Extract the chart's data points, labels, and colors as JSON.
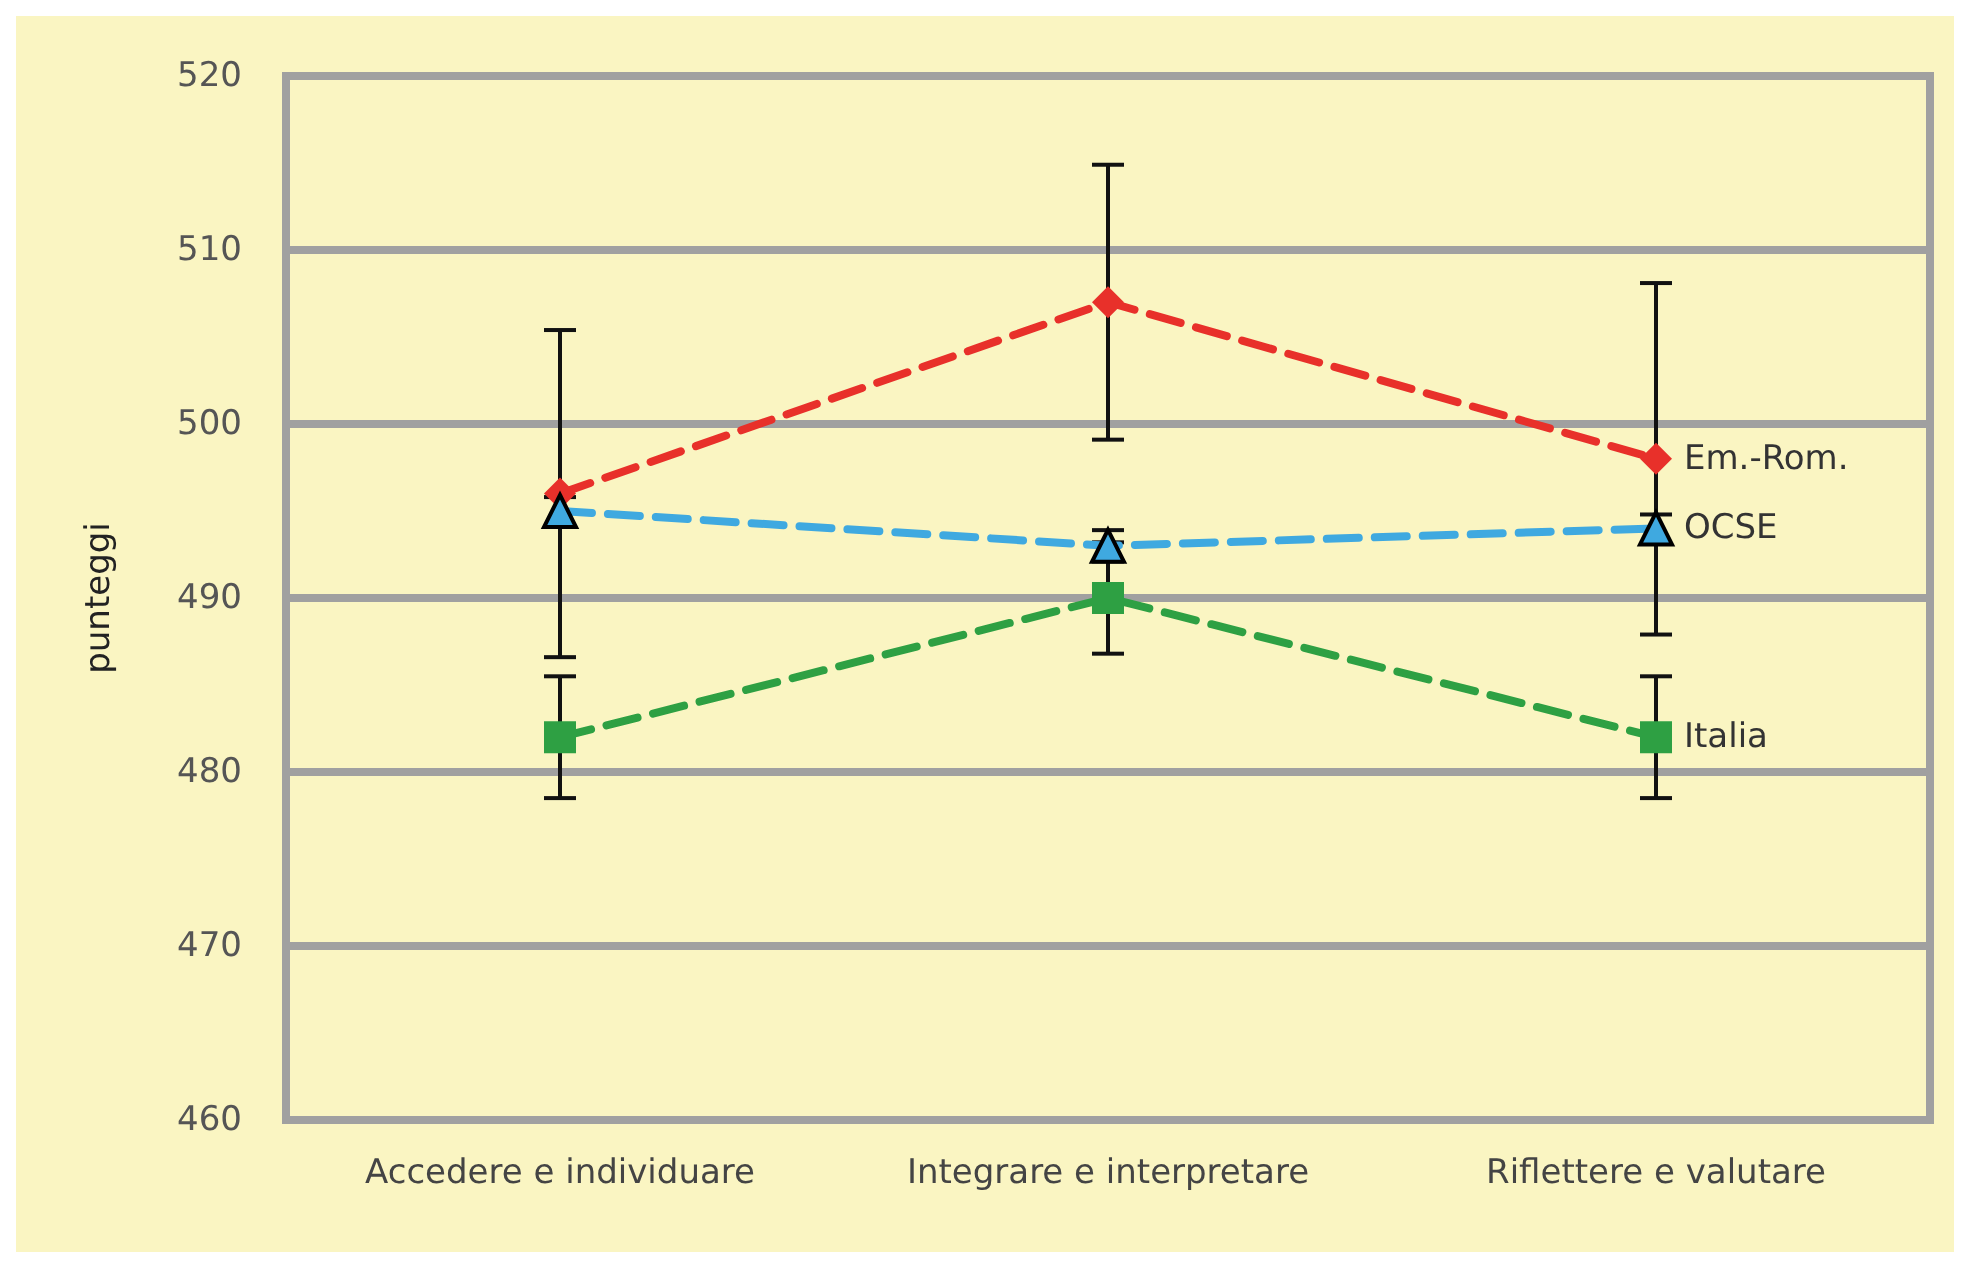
{
  "chart_data": {
    "type": "line",
    "ylabel": "punteggi",
    "categories": [
      "Accedere e individuare",
      "Integrare e interpretare",
      "Riflettere e valutare"
    ],
    "series": [
      {
        "name": "Em.-Rom.",
        "color": "#e8302a",
        "marker": "diamond",
        "values": [
          496,
          507,
          498
        ],
        "errors": [
          9.4,
          7.9,
          10.1
        ]
      },
      {
        "name": "OCSE",
        "color": "#3fa9e0",
        "marker": "triangle",
        "values": [
          495,
          493,
          494
        ],
        "errors": [
          0.8,
          0.9,
          0.8
        ]
      },
      {
        "name": "Italia",
        "color": "#2ea043",
        "marker": "square",
        "values": [
          482,
          490,
          482
        ],
        "errors": [
          3.5,
          3.2,
          3.5
        ]
      }
    ],
    "ylim": [
      460,
      520
    ],
    "yticks": [
      460,
      470,
      480,
      490,
      500,
      510,
      520
    ],
    "grid": "y",
    "legend": false,
    "line_style": "dashed"
  }
}
